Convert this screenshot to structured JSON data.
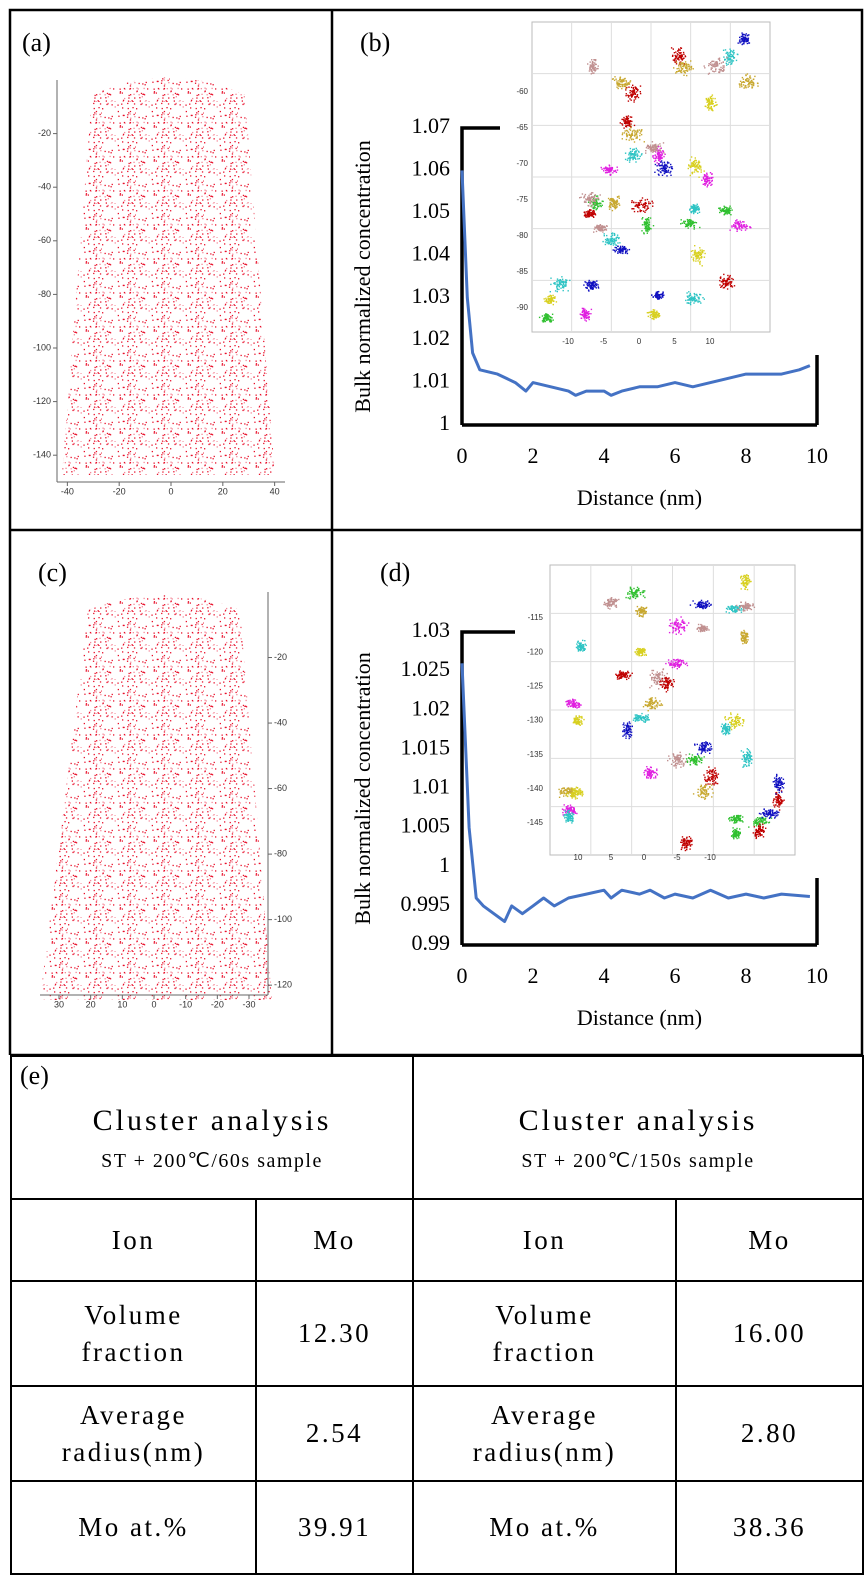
{
  "figure": {
    "panels": [
      {
        "label": "(a)",
        "type": "atom-map",
        "xlim": [
          -44,
          44
        ],
        "ylim": [
          0,
          -150
        ],
        "xticks": [
          -40,
          -20,
          0,
          20,
          40
        ],
        "yticks": [
          -20,
          -40,
          -60,
          -80,
          -100,
          -120,
          -140
        ]
      },
      {
        "label": "(b)",
        "type": "line",
        "ylabel": "Bulk normalized concentration",
        "xlabel": "Distance (nm)",
        "xlim": [
          0,
          10
        ],
        "ylim": [
          1,
          1.07
        ],
        "xticks": [
          0,
          2,
          4,
          6,
          8,
          10
        ],
        "yticks": [
          1,
          1.01,
          1.02,
          1.03,
          1.04,
          1.05,
          1.06,
          1.07
        ],
        "color": "#4472c4",
        "x": [
          0,
          0.15,
          0.3,
          0.5,
          1,
          1.5,
          1.8,
          2,
          2.5,
          3,
          3.2,
          3.5,
          4,
          4.2,
          4.5,
          5,
          5.5,
          6,
          6.5,
          7,
          7.5,
          8,
          8.5,
          9,
          9.5,
          9.8
        ],
        "values": [
          1.06,
          1.03,
          1.017,
          1.013,
          1.012,
          1.01,
          1.008,
          1.01,
          1.009,
          1.008,
          1.007,
          1.008,
          1.008,
          1.007,
          1.008,
          1.009,
          1.009,
          1.01,
          1.009,
          1.01,
          1.011,
          1.012,
          1.012,
          1.012,
          1.013,
          1.014
        ],
        "inset": {
          "zticks": [
            -60,
            -65,
            -70,
            -75,
            -80,
            -85,
            -90
          ],
          "xticks": [
            -10,
            -5,
            0,
            5,
            10
          ]
        }
      },
      {
        "label": "(c)",
        "type": "atom-map",
        "xlim": [
          36,
          -36
        ],
        "ylim": [
          0,
          -123
        ],
        "xticks": [
          30,
          20,
          10,
          0,
          -10,
          -20,
          -30
        ],
        "yticks": [
          -20,
          -40,
          -60,
          -80,
          -100,
          -120
        ]
      },
      {
        "label": "(d)",
        "type": "line",
        "ylabel": "Bulk normalized concentration",
        "xlabel": "Distance (nm)",
        "xlim": [
          0,
          10
        ],
        "ylim": [
          0.99,
          1.03
        ],
        "xticks": [
          0,
          2,
          4,
          6,
          8,
          10
        ],
        "yticks": [
          0.99,
          0.995,
          1,
          1.005,
          1.01,
          1.015,
          1.02,
          1.025,
          1.03
        ],
        "color": "#4472c4",
        "x": [
          0,
          0.2,
          0.4,
          0.6,
          0.9,
          1.2,
          1.4,
          1.7,
          2,
          2.3,
          2.6,
          3,
          3.5,
          4,
          4.2,
          4.5,
          5,
          5.3,
          5.7,
          6,
          6.5,
          7,
          7.5,
          8,
          8.5,
          9,
          9.8
        ],
        "values": [
          1.026,
          1.005,
          0.996,
          0.995,
          0.994,
          0.993,
          0.995,
          0.994,
          0.995,
          0.996,
          0.995,
          0.996,
          0.9965,
          0.997,
          0.996,
          0.997,
          0.9965,
          0.997,
          0.996,
          0.9965,
          0.996,
          0.997,
          0.996,
          0.9965,
          0.996,
          0.9965,
          0.9962
        ],
        "inset": {
          "zticks": [
            -115,
            -120,
            -125,
            -130,
            -135,
            -140,
            -145
          ],
          "xticks": [
            10,
            5,
            0,
            -5,
            -10
          ]
        }
      }
    ]
  },
  "table": {
    "label": "(e)",
    "groups": [
      {
        "title": "Cluster analysis",
        "subtitle": "ST + 200℃/60s sample",
        "rows": [
          [
            "Ion",
            "Mo"
          ],
          [
            "Volume fraction",
            "12.30"
          ],
          [
            "Average radius(nm)",
            "2.54"
          ],
          [
            "Mo at.%",
            "39.91"
          ]
        ]
      },
      {
        "title": "Cluster analysis",
        "subtitle": "ST + 200℃/150s sample",
        "rows": [
          [
            "Ion",
            "Mo"
          ],
          [
            "Volume fraction",
            "16.00"
          ],
          [
            "Average radius(nm)",
            "2.80"
          ],
          [
            "Mo at.%",
            "38.36"
          ]
        ]
      }
    ]
  }
}
